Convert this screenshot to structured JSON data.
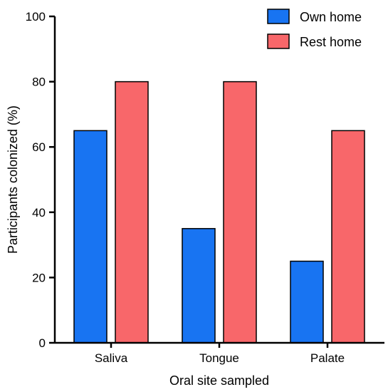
{
  "chart_data": {
    "type": "bar",
    "title": "",
    "xlabel": "Oral site sampled",
    "ylabel": "Participants colonized (%)",
    "ylim": [
      0,
      100
    ],
    "yticks": [
      0,
      20,
      40,
      60,
      80,
      100
    ],
    "categories": [
      "Saliva",
      "Tongue",
      "Palate"
    ],
    "series": [
      {
        "name": "Own home",
        "color": "#1874F2",
        "values": [
          65,
          35,
          25
        ]
      },
      {
        "name": "Rest home",
        "color": "#F8676A",
        "values": [
          80,
          80,
          65
        ]
      }
    ],
    "legend_position": "top-right",
    "grid": false
  }
}
